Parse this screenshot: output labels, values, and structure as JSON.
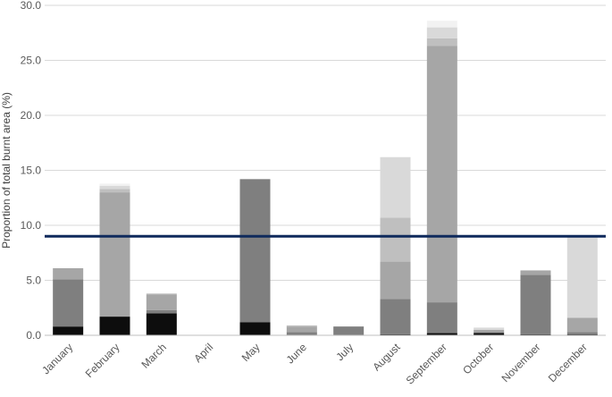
{
  "chart_data": {
    "type": "bar",
    "stacked": true,
    "title": "",
    "xlabel": "",
    "ylabel": "Proportion of total burnt area (%)",
    "ylim": [
      0,
      30
    ],
    "yticks": [
      "0.0",
      "5.0",
      "10.0",
      "15.0",
      "20.0",
      "25.0",
      "30.0"
    ],
    "grid": true,
    "categories": [
      "January",
      "February",
      "March",
      "April",
      "May",
      "June",
      "July",
      "August",
      "September",
      "October",
      "November",
      "December"
    ],
    "series": [
      {
        "color": "#0d0d0d",
        "values": [
          0.8,
          1.7,
          2.0,
          0,
          1.2,
          0,
          0,
          0.1,
          0.2,
          0.2,
          0.1,
          0.1
        ]
      },
      {
        "color": "#7f7f7f",
        "values": [
          4.3,
          0,
          0.3,
          0,
          13.0,
          0.3,
          0.8,
          3.2,
          2.8,
          0.1,
          5.4,
          0.2
        ]
      },
      {
        "color": "#a6a6a6",
        "values": [
          1.0,
          11.3,
          1.4,
          0,
          0,
          0.5,
          0,
          3.4,
          23.3,
          0.2,
          0.4,
          1.3
        ]
      },
      {
        "color": "#bfbfbf",
        "values": [
          0,
          0.3,
          0.1,
          0,
          0,
          0.1,
          0,
          4.0,
          0.7,
          0,
          0,
          0
        ]
      },
      {
        "color": "#d9d9d9",
        "values": [
          0,
          0.3,
          0,
          0,
          0,
          0,
          0,
          5.5,
          1.0,
          0.2,
          0,
          7.4
        ]
      },
      {
        "color": "#f2f2f2",
        "values": [
          0,
          0.2,
          0,
          0,
          0,
          0,
          0,
          0,
          0.6,
          0,
          0,
          0
        ]
      }
    ],
    "reference_line": {
      "value": 9.0,
      "color": "#0f2a5c"
    }
  }
}
